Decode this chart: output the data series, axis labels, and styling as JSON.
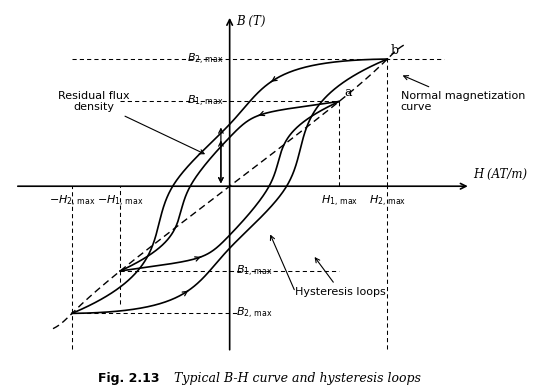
{
  "title": "Fig. 2.13",
  "subtitle": "Typical B-H curve and hysteresis loops",
  "background_color": "#ffffff",
  "line_color": "#000000",
  "H1max": 0.5,
  "H2max": 0.72,
  "B1max": 0.52,
  "B2max": 0.78,
  "Br1": 0.3,
  "Br2": 0.38,
  "Hc1": 0.18,
  "Hc2": 0.26,
  "xlim": [
    -0.98,
    1.1
  ],
  "ylim": [
    -1.02,
    1.05
  ],
  "axis_label_H": "H (AT/m)",
  "axis_label_B": "B (T)",
  "label_a": "a",
  "label_b": "b",
  "label_residual": "Residual flux\ndensity",
  "label_normal": "Normal magnetization\ncurve",
  "label_hysteresis": "Hysteresis loops"
}
